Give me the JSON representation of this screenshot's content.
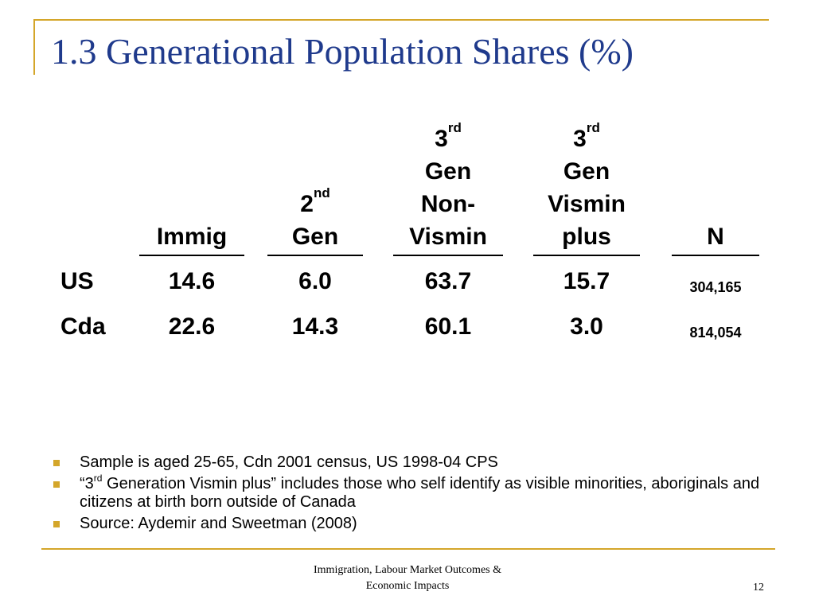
{
  "slide": {
    "title": "1.3 Generational Population Shares (%)"
  },
  "table": {
    "headers": {
      "immig": "Immig",
      "gen2_num": "2",
      "gen2_sup": "nd",
      "gen2_word": "Gen",
      "gen3nv_num": "3",
      "gen3nv_sup": "rd",
      "gen3nv_line1": "Gen",
      "gen3nv_line2": "Non-",
      "gen3nv_line3": "Vismin",
      "gen3vp_num": "3",
      "gen3vp_sup": "rd",
      "gen3vp_line1": "Gen",
      "gen3vp_line2": "Vismin",
      "gen3vp_line3": "plus",
      "n": "N"
    },
    "rows": [
      {
        "label": "US",
        "immig": "14.6",
        "gen2": "6.0",
        "gen3_nonvismin": "63.7",
        "gen3_vismin_plus": "15.7",
        "n": "304,165"
      },
      {
        "label": "Cda",
        "immig": "22.6",
        "gen2": "14.3",
        "gen3_nonvismin": "60.1",
        "gen3_vismin_plus": "3.0",
        "n": "814,054"
      }
    ]
  },
  "bullets": {
    "b1": "Sample is aged 25-65, Cdn 2001 census, US 1998-04 CPS",
    "b2_pre": "“3",
    "b2_sup": "rd",
    "b2_post": " Generation Vismin plus” includes those who self identify as visible minorities, aboriginals and citizens at birth born outside of Canada",
    "b3": "Source: Aydemir and Sweetman (2008)"
  },
  "footer": {
    "line1": "Immigration, Labour Market Outcomes &",
    "line2": "Economic Impacts",
    "page_number": "12"
  },
  "colors": {
    "accent_gold": "#d4a62a",
    "title_blue": "#1f3a8c"
  }
}
